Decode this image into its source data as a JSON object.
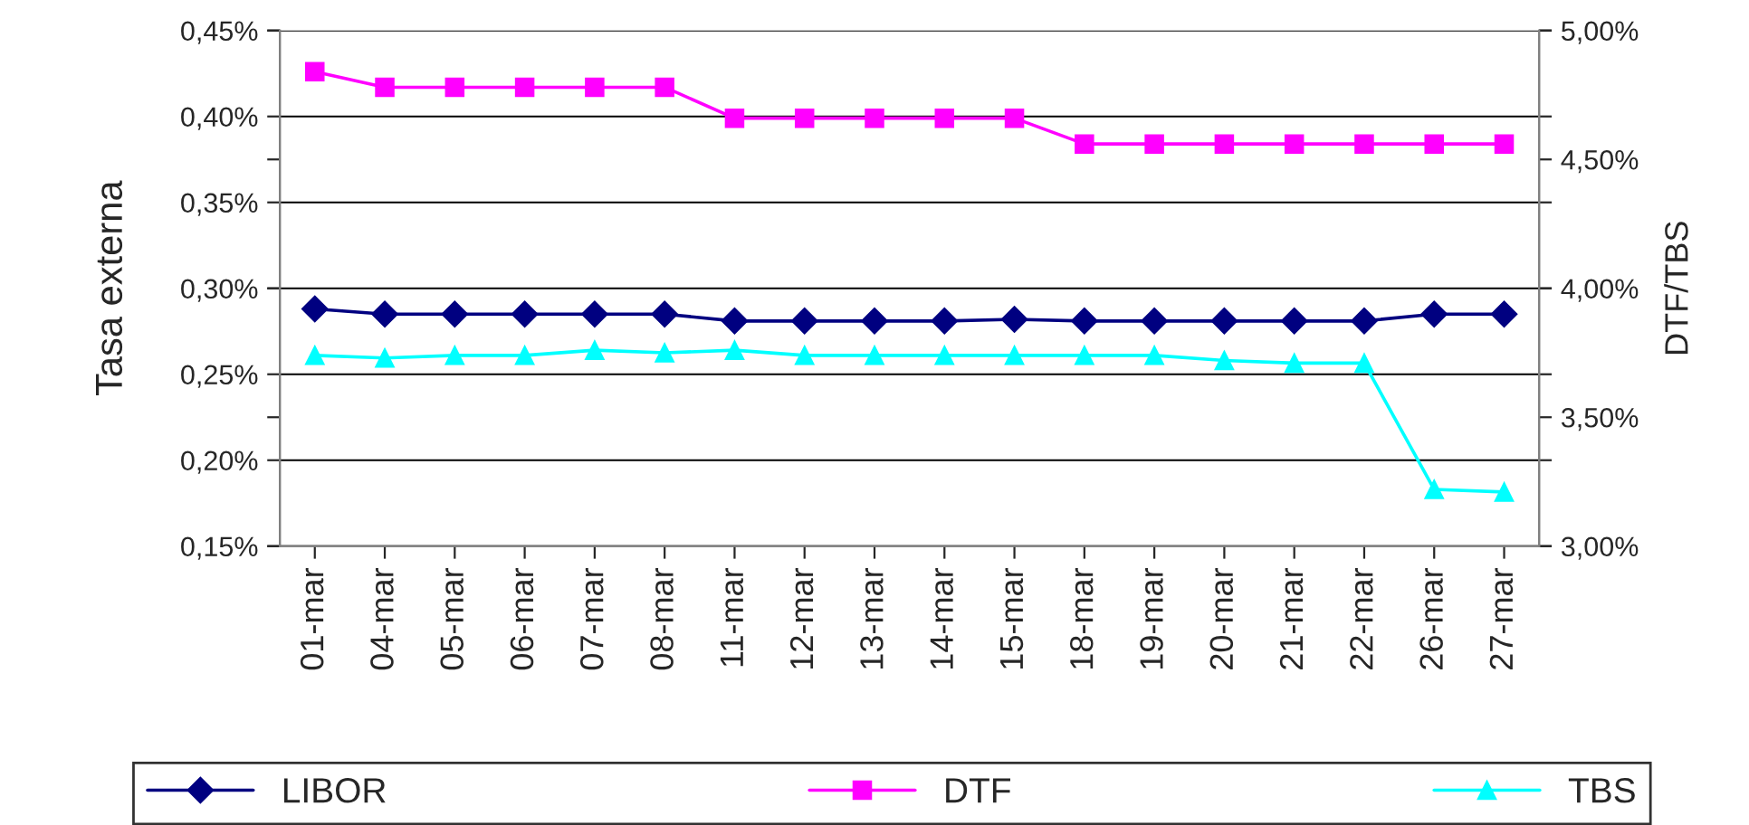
{
  "chart_data": {
    "type": "line",
    "categories": [
      "01-mar",
      "04-mar",
      "05-mar",
      "06-mar",
      "07-mar",
      "08-mar",
      "11-mar",
      "12-mar",
      "13-mar",
      "14-mar",
      "15-mar",
      "18-mar",
      "19-mar",
      "20-mar",
      "21-mar",
      "22-mar",
      "26-mar",
      "27-mar"
    ],
    "series": [
      {
        "name": "LIBOR",
        "color": "#000080",
        "marker": "diamond",
        "values": [
          0.288,
          0.285,
          0.285,
          0.285,
          0.285,
          0.285,
          0.281,
          0.281,
          0.281,
          0.281,
          0.282,
          0.281,
          0.281,
          0.281,
          0.281,
          0.281,
          0.285,
          0.285
        ]
      },
      {
        "name": "DTF",
        "color": "#ff00ff",
        "marker": "square",
        "axis": "y2",
        "values": [
          4.84,
          4.78,
          4.78,
          4.78,
          4.78,
          4.78,
          4.66,
          4.66,
          4.66,
          4.66,
          4.66,
          4.56,
          4.56,
          4.56,
          4.56,
          4.56,
          4.56,
          4.56
        ]
      },
      {
        "name": "TBS",
        "color": "#00ffff",
        "marker": "triangle",
        "axis": "y2",
        "values": [
          3.74,
          3.73,
          3.74,
          3.74,
          3.76,
          3.75,
          3.76,
          3.74,
          3.74,
          3.74,
          3.74,
          3.74,
          3.74,
          3.72,
          3.71,
          3.71,
          3.22,
          3.21
        ]
      }
    ],
    "ylabel": "Tasa externa",
    "y2label": "DTF/TBS",
    "ylim": [
      0.15,
      0.45
    ],
    "yticks": [
      {
        "value": 0.15,
        "label": "0,15%"
      },
      {
        "value": 0.2,
        "label": "0,20%"
      },
      {
        "value": 0.25,
        "label": "0,25%"
      },
      {
        "value": 0.3,
        "label": "0,30%"
      },
      {
        "value": 0.35,
        "label": "0,35%"
      },
      {
        "value": 0.4,
        "label": "0,40%"
      },
      {
        "value": 0.45,
        "label": "0,45%"
      }
    ],
    "y2lim": [
      3.0,
      5.0
    ],
    "y2ticks": [
      {
        "value": 3.0,
        "label": "3,00%"
      },
      {
        "value": 3.5,
        "label": "3,50%"
      },
      {
        "value": 4.0,
        "label": "4,00%"
      },
      {
        "value": 4.5,
        "label": "4,50%"
      },
      {
        "value": 5.0,
        "label": "5,00%"
      }
    ],
    "grid": "y",
    "legend": "bottom",
    "line_style": "solid"
  }
}
